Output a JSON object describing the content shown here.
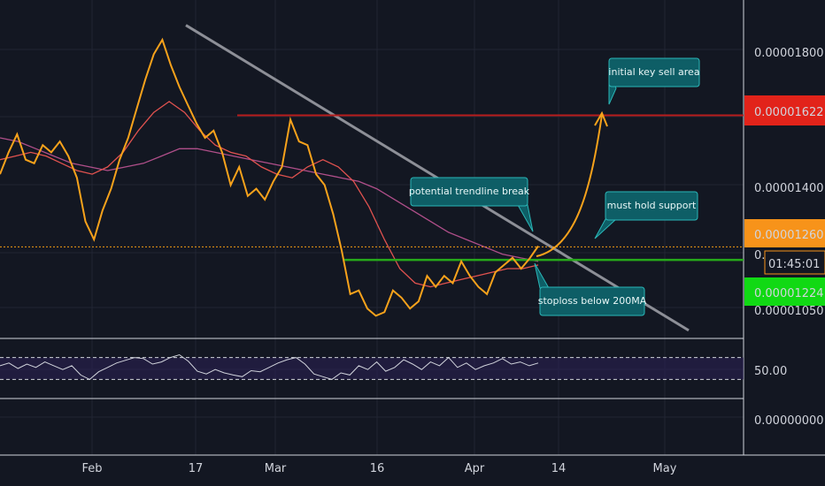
{
  "chart_data": {
    "type": "line",
    "price_pane": {
      "y_ticks": [
        "0.00001800",
        "0.00001400",
        "0.00001050"
      ],
      "ylim": [
        1.02e-05,
        1.92e-05
      ],
      "price_series": {
        "x_range": [
          0,
          608
        ],
        "values": [
          1.46e-05,
          1.52e-05,
          1.57e-05,
          1.5e-05,
          1.49e-05,
          1.54e-05,
          1.52e-05,
          1.55e-05,
          1.51e-05,
          1.45e-05,
          1.33e-05,
          1.28e-05,
          1.36e-05,
          1.42e-05,
          1.5e-05,
          1.56e-05,
          1.64e-05,
          1.72e-05,
          1.79e-05,
          1.83e-05,
          1.76e-05,
          1.7e-05,
          1.65e-05,
          1.6e-05,
          1.56e-05,
          1.58e-05,
          1.52e-05,
          1.43e-05,
          1.48e-05,
          1.4e-05,
          1.42e-05,
          1.39e-05,
          1.44e-05,
          1.48e-05,
          1.61e-05,
          1.55e-05,
          1.54e-05,
          1.46e-05,
          1.43e-05,
          1.35e-05,
          1.25e-05,
          1.13e-05,
          1.14e-05,
          1.09e-05,
          1.07e-05,
          1.08e-05,
          1.14e-05,
          1.12e-05,
          1.09e-05,
          1.11e-05,
          1.18e-05,
          1.15e-05,
          1.18e-05,
          1.16e-05,
          1.22e-05,
          1.18e-05,
          1.15e-05,
          1.13e-05,
          1.19e-05,
          1.21e-05,
          1.23e-05,
          1.2e-05,
          1.228e-05,
          1.262e-05
        ],
        "color": "#f7a21b"
      },
      "ma_short": {
        "color": "#e0524f",
        "values": [
          1.5e-05,
          1.51e-05,
          1.52e-05,
          1.51e-05,
          1.49e-05,
          1.47e-05,
          1.46e-05,
          1.48e-05,
          1.52e-05,
          1.58e-05,
          1.63e-05,
          1.66e-05,
          1.63e-05,
          1.58e-05,
          1.54e-05,
          1.52e-05,
          1.51e-05,
          1.48e-05,
          1.46e-05,
          1.45e-05,
          1.48e-05,
          1.5e-05,
          1.48e-05,
          1.44e-05,
          1.37e-05,
          1.28e-05,
          1.2e-05,
          1.16e-05,
          1.15e-05,
          1.16e-05,
          1.17e-05,
          1.18e-05,
          1.19e-05,
          1.2e-05,
          1.2e-05,
          1.21e-05
        ]
      },
      "ma_long": {
        "color": "#b04f8a",
        "values": [
          1.56e-05,
          1.55e-05,
          1.53e-05,
          1.51e-05,
          1.49e-05,
          1.48e-05,
          1.47e-05,
          1.48e-05,
          1.49e-05,
          1.51e-05,
          1.53e-05,
          1.53e-05,
          1.52e-05,
          1.51e-05,
          1.5e-05,
          1.49e-05,
          1.48e-05,
          1.47e-05,
          1.46e-05,
          1.45e-05,
          1.44e-05,
          1.42e-05,
          1.39e-05,
          1.36e-05,
          1.33e-05,
          1.3e-05,
          1.28e-05,
          1.26e-05,
          1.24e-05,
          1.23e-05,
          1.22e-05
        ]
      },
      "trendline": {
        "from": [
          1.87e-05,
          210
        ],
        "to": [
          1.03e-05,
          778
        ],
        "color": "#8d8f97"
      },
      "levels": [
        {
          "value": 1.622e-05,
          "color": "#b71c1c",
          "label": "0.00001622",
          "label_bg": "#e2231a"
        },
        {
          "value": 1.26e-05,
          "color": "#f39c12",
          "label": "0.00001260",
          "label_bg": "#f7931a",
          "dotted": true
        },
        {
          "value": 1.224e-05,
          "color": "#26a91a",
          "label": "0.00001224",
          "label_bg": "#11d914"
        }
      ],
      "countdown": "01:45:01",
      "truncated_tick": "0."
    },
    "rsi_pane": {
      "y_tick": "50.00",
      "upper": 70,
      "lower": 30,
      "ylim": [
        0,
        100
      ],
      "values": [
        55,
        60,
        50,
        58,
        52,
        62,
        55,
        48,
        55,
        38,
        30,
        44,
        52,
        60,
        65,
        70,
        68,
        58,
        62,
        70,
        75,
        63,
        45,
        40,
        48,
        42,
        38,
        35,
        46,
        44,
        52,
        60,
        66,
        70,
        58,
        40,
        35,
        30,
        42,
        38,
        55,
        48,
        62,
        45,
        52,
        66,
        58,
        48,
        62,
        55,
        70,
        52,
        60,
        48,
        55,
        60,
        68,
        58,
        62,
        55,
        60
      ],
      "color": "#d1d4dc"
    },
    "bottom_pane": {
      "y_tick": "0.00000000"
    },
    "x_ticks": [
      "Feb",
      "17",
      "Mar",
      "16",
      "Apr",
      "14",
      "May"
    ],
    "annotations": [
      {
        "text": "initial key sell area"
      },
      {
        "text": "potential trendline break"
      },
      {
        "text": "must hold support"
      },
      {
        "text": "stoploss below 200MA"
      }
    ]
  }
}
